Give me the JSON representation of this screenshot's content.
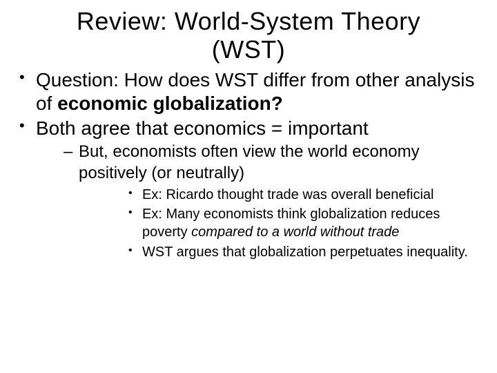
{
  "colors": {
    "background": "#ffffff",
    "text": "#000000"
  },
  "typography": {
    "title_fontsize": 36,
    "l1_fontsize": 28,
    "l2_fontsize": 24,
    "l3_fontsize": 20,
    "font_family": "Arial"
  },
  "title": {
    "line1": "Review:  World-System Theory",
    "line2": "(WST)"
  },
  "bullets": {
    "b1": {
      "prefix": "Question:  How does WST differ from other analysis of ",
      "bold": "economic globalization?"
    },
    "b2": "Both agree that economics = important",
    "b2_sub1": "But, economists often view the world economy positively (or neutrally)",
    "b2_sub1_a": "Ex:  Ricardo thought trade was overall beneficial",
    "b2_sub1_b_prefix": "Ex:  Many economists think globalization reduces poverty ",
    "b2_sub1_b_italic": "compared to a world without trade",
    "b2_sub1_c": "WST argues that globalization perpetuates inequality."
  }
}
